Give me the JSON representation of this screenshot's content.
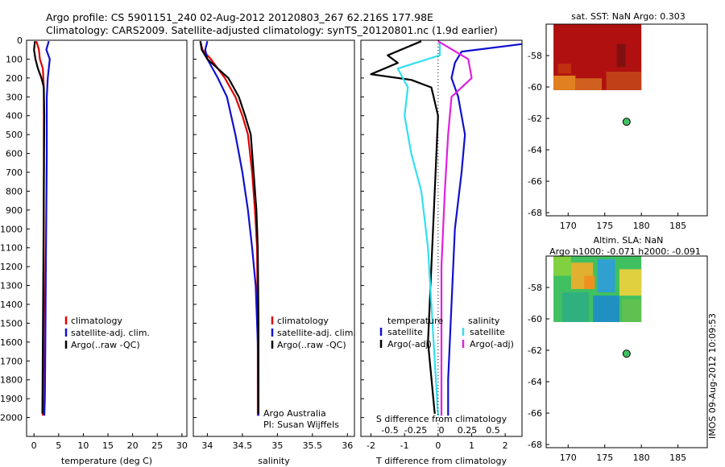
{
  "header": {
    "line1": "Argo profile: CS 5901151_240 02-Aug-2012 20120803_267 62.216S 177.98E",
    "line2": "Climatology: CARS2009. Satellite-adjusted climatology: synTS_20120801.nc (1.9d earlier)"
  },
  "side_label": "IMOS 09-Aug-2012 10:09:53",
  "colors": {
    "red": "#e00000",
    "blue": "#1010d0",
    "black": "#000000",
    "cyan": "#30e0f0",
    "magenta": "#e020e0",
    "sst_hot": "#b01010",
    "sla_green": "#40c060"
  },
  "chart_data": [
    {
      "id": "temperature",
      "type": "line",
      "xlabel": "temperature (deg C)",
      "ylabel": "",
      "xlim": [
        -1.5,
        31
      ],
      "ylim": [
        2100,
        0
      ],
      "xticks": [
        0,
        5,
        10,
        15,
        20,
        25,
        30
      ],
      "yticks": [
        0,
        100,
        200,
        300,
        400,
        500,
        600,
        700,
        800,
        900,
        1000,
        1100,
        1200,
        1300,
        1400,
        1500,
        1600,
        1700,
        1800,
        1900,
        2000
      ],
      "legend": [
        "climatology",
        "satellite-adj. clim.",
        "Argo(..raw -QC)"
      ],
      "series": [
        {
          "name": "climatology",
          "color": "red",
          "x": [
            0.5,
            1.0,
            1.2,
            1.8,
            2.0,
            2.0,
            2.0,
            2.0,
            2.0,
            1.9,
            1.8
          ],
          "y": [
            5,
            50,
            100,
            150,
            250,
            400,
            700,
            1000,
            1400,
            1800,
            1990
          ]
        },
        {
          "name": "satellite-adj. clim.",
          "color": "blue",
          "x": [
            3.0,
            2.5,
            3.2,
            2.8,
            2.6,
            2.6,
            2.5,
            2.4,
            2.3,
            2.2,
            2.1
          ],
          "y": [
            5,
            50,
            100,
            200,
            300,
            600,
            900,
            1200,
            1600,
            1900,
            1990
          ]
        },
        {
          "name": "Argo(..raw -QC)",
          "color": "black",
          "x": [
            0.2,
            0.0,
            0.3,
            0.8,
            1.5,
            2.0,
            2.1,
            2.0,
            1.9,
            1.8,
            1.7
          ],
          "y": [
            5,
            50,
            100,
            150,
            200,
            250,
            400,
            800,
            1200,
            1600,
            1980
          ]
        }
      ]
    },
    {
      "id": "salinity",
      "type": "line",
      "xlabel": "salinity",
      "xlim": [
        33.8,
        36.1
      ],
      "ylim": [
        2100,
        0
      ],
      "xticks": [
        34,
        34.5,
        35,
        35.5,
        36
      ],
      "legend": [
        "climatology",
        "satellite-adj. clim.",
        "Argo(..raw -QC)"
      ],
      "annotations": [
        "Argo Australia",
        "PI: Susan Wijffels"
      ],
      "series": [
        {
          "name": "climatology",
          "color": "red",
          "x": [
            33.9,
            33.93,
            34.05,
            34.25,
            34.4,
            34.5,
            34.58,
            34.64,
            34.68,
            34.71,
            34.72,
            34.72
          ],
          "y": [
            5,
            50,
            100,
            200,
            300,
            400,
            500,
            700,
            900,
            1100,
            1500,
            1990
          ]
        },
        {
          "name": "satellite-adj. clim.",
          "color": "blue",
          "x": [
            34.0,
            33.97,
            34.0,
            34.15,
            34.28,
            34.4,
            34.5,
            34.58,
            34.64,
            34.69,
            34.72,
            34.73
          ],
          "y": [
            5,
            50,
            100,
            200,
            300,
            500,
            700,
            900,
            1100,
            1300,
            1600,
            1990
          ]
        },
        {
          "name": "Argo(..raw -QC)",
          "color": "black",
          "x": [
            33.9,
            33.92,
            34.0,
            34.3,
            34.45,
            34.54,
            34.62,
            34.66,
            34.7,
            34.72,
            34.73,
            34.73
          ],
          "y": [
            5,
            50,
            100,
            200,
            300,
            400,
            500,
            700,
            900,
            1100,
            1500,
            1980
          ]
        }
      ]
    },
    {
      "id": "difference",
      "type": "line",
      "xlabel": "T difference from climatology",
      "xlabel_top": "S difference from climatology",
      "xlim": [
        -2.3,
        2.5
      ],
      "ylim": [
        2100,
        0
      ],
      "xticks": [
        -2,
        -1,
        0,
        1,
        2
      ],
      "top_ticks": [
        "-0.5",
        "-0.25",
        "0",
        "0.25",
        "0.5"
      ],
      "legend_t": {
        "title": "temperature",
        "items": [
          "satellite",
          "Argo(-adj)"
        ]
      },
      "legend_s": {
        "title": "salinity",
        "items": [
          "satellite",
          "Argo(-adj)"
        ]
      },
      "series": [
        {
          "name": "T satellite",
          "color": "blue",
          "x": [
            2.5,
            0.7,
            0.5,
            0.4,
            0.6,
            0.8,
            0.7,
            0.5,
            0.4,
            0.3,
            0.3
          ],
          "y": [
            20,
            60,
            120,
            200,
            300,
            500,
            700,
            1000,
            1400,
            1800,
            1990
          ]
        },
        {
          "name": "T Argo(-adj)",
          "color": "black",
          "x": [
            -0.5,
            -1.5,
            -1.2,
            -2.0,
            -0.8,
            -0.2,
            0.0,
            -0.1,
            -0.2,
            -0.3,
            -0.1
          ],
          "y": [
            5,
            80,
            120,
            180,
            210,
            250,
            400,
            800,
            1200,
            1600,
            1980
          ]
        },
        {
          "name": "S satellite",
          "color": "cyan",
          "x": [
            0.05,
            0.05,
            -1.2,
            -0.9,
            -1.0,
            -0.8,
            -0.5,
            -0.3,
            -0.2,
            -0.1,
            0.0
          ],
          "y": [
            5,
            80,
            150,
            250,
            400,
            600,
            800,
            1100,
            1400,
            1700,
            1990
          ]
        },
        {
          "name": "S Argo(-adj)",
          "color": "magenta",
          "x": [
            0.0,
            0.9,
            1.0,
            0.4,
            0.3,
            0.2,
            0.1,
            0.1,
            0.1
          ],
          "y": [
            5,
            100,
            200,
            300,
            500,
            800,
            1200,
            1600,
            1990
          ]
        }
      ]
    }
  ],
  "maps": [
    {
      "id": "sst",
      "title": "sat. SST: NaN Argo: 0.303",
      "title2": "",
      "xlim": [
        167,
        189
      ],
      "ylim": [
        -68.2,
        -56
      ],
      "xticks": [
        170,
        175,
        180,
        185
      ],
      "yticks": [
        -58,
        -60,
        -62,
        -64,
        -66,
        -68
      ],
      "point": {
        "lon": 177.98,
        "lat": -62.216
      }
    },
    {
      "id": "sla",
      "title": "Altim. SLA: NaN",
      "title2": "Argo h1000: -0.071 h2000: -0.091",
      "xlim": [
        167,
        189
      ],
      "ylim": [
        -68.2,
        -56
      ],
      "xticks": [
        170,
        175,
        180,
        185
      ],
      "yticks": [
        -58,
        -60,
        -62,
        -64,
        -66,
        -68
      ],
      "point": {
        "lon": 177.98,
        "lat": -62.216
      }
    }
  ]
}
